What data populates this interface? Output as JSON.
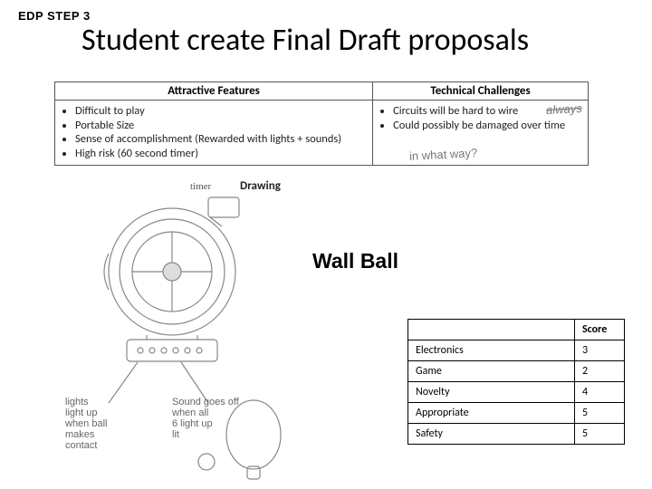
{
  "header": {
    "step_label": "EDP STEP 3",
    "title": "Student create Final Draft proposals"
  },
  "features": {
    "col1_header": "Attractive Features",
    "col2_header": "Technical Challenges",
    "attractive": [
      "Difficult to play",
      "Portable Size",
      "Sense of accomplishment (Rewarded with lights + sounds)",
      "High risk (60 second timer)"
    ],
    "technical": [
      "Circuits will be hard to wire",
      "Could possibly be damaged over time"
    ],
    "scribble_always": "always",
    "scribble_way": "in what way?"
  },
  "drawing": {
    "label": "Drawing",
    "timer_note": "timer"
  },
  "project": {
    "name": "Wall Ball"
  },
  "score_table": {
    "score_header": "Score",
    "rows": [
      {
        "label": "Electronics",
        "value": "3"
      },
      {
        "label": "Game",
        "value": "2"
      },
      {
        "label": "Novelty",
        "value": "4"
      },
      {
        "label": "Appropriate",
        "value": "5"
      },
      {
        "label": "Safety",
        "value": "5"
      }
    ]
  },
  "hand_notes": {
    "lights": "lights\nlight up\nwhen ball\nmakes\ncontact",
    "sounds": "Sound goes off\nwhen all\n6 light up\nlit"
  },
  "colors": {
    "text": "#000000",
    "border": "#000000",
    "sketch": "#888888",
    "background": "#ffffff"
  }
}
